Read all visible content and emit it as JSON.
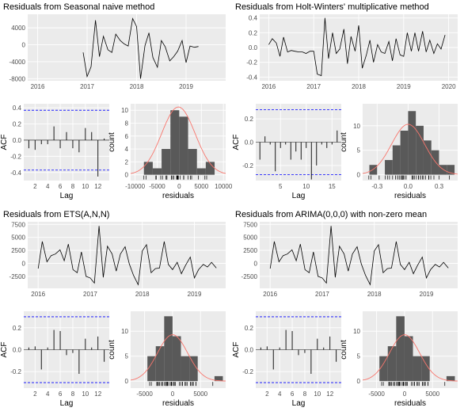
{
  "colors": {
    "panel_bg": "#ebebeb",
    "grid_major": "#ffffff",
    "line": "#000000",
    "bar_fill": "#595959",
    "normal_curve": "#f8766d",
    "conf_limit": "#0000ff",
    "axis_text": "#4d4d4d"
  },
  "chart_data": [
    {
      "group": "top-left",
      "title": "Residuals from Seasonal naive method",
      "residual_series": {
        "type": "line",
        "x_ticks": [
          "2016",
          "2017",
          "2018",
          "2019"
        ],
        "x_range": [
          2015.8,
          2019.8
        ],
        "y_ticks": [
          "4000",
          "0",
          "-4000",
          "-8000"
        ],
        "y_tick_values": [
          4000,
          0,
          -4000,
          -8000
        ],
        "y_range": [
          -8500,
          7200
        ],
        "x": [
          2016.92,
          2017.0,
          2017.08,
          2017.17,
          2017.25,
          2017.33,
          2017.42,
          2017.5,
          2017.58,
          2017.67,
          2017.75,
          2017.83,
          2017.92,
          2018.0,
          2018.08,
          2018.17,
          2018.25,
          2018.33,
          2018.42,
          2018.5,
          2018.58,
          2018.67,
          2018.75,
          2018.83,
          2018.92,
          2019.0,
          2019.08,
          2019.17,
          2019.25
        ],
        "y": [
          -1800,
          -7500,
          -5200,
          5800,
          -2800,
          2000,
          -1200,
          -1800,
          2500,
          1000,
          200,
          -300,
          6200,
          4300,
          -8000,
          -200,
          2800,
          -3000,
          -5300,
          1000,
          -500,
          -3800,
          -2800,
          -1500,
          1000,
          -4200,
          -300,
          -600,
          -400
        ]
      },
      "acf": {
        "type": "bar",
        "xlabel": "Lag",
        "ylabel": "ACF",
        "x_ticks": [
          "2",
          "4",
          "6",
          "8",
          "10",
          "12"
        ],
        "x_range": [
          0.2,
          13.8
        ],
        "y_ticks": [
          "0.4",
          "0.2",
          "0.0",
          "-0.2",
          "-0.4"
        ],
        "y_tick_values": [
          0.4,
          0.2,
          0.0,
          -0.2,
          -0.4
        ],
        "y_range": [
          -0.5,
          0.45
        ],
        "conf_limit": 0.37,
        "lags": [
          1,
          2,
          3,
          4,
          5,
          6,
          7,
          8,
          9,
          10,
          11,
          12,
          13
        ],
        "values": [
          -0.1,
          -0.12,
          -0.05,
          -0.05,
          0.17,
          -0.1,
          0.1,
          -0.1,
          -0.15,
          0.15,
          0.1,
          -0.45,
          0.02
        ]
      },
      "histogram": {
        "type": "bar",
        "xlabel": "residuals",
        "ylabel": "count",
        "x_ticks": [
          "-10000",
          "-5000",
          "0",
          "5000",
          "10000"
        ],
        "x_range": [
          -11000,
          10500
        ],
        "y_ticks": [
          "0",
          "2",
          "4",
          "6",
          "8",
          "10"
        ],
        "y_tick_values": [
          0,
          2,
          4,
          6,
          8,
          10
        ],
        "y_range": [
          -0.9,
          11
        ],
        "bin_width": 2000,
        "bin_starts": [
          -8000,
          -6000,
          -4000,
          -2000,
          0,
          2000,
          4000,
          6000
        ],
        "counts": [
          2,
          1,
          4,
          10,
          9,
          4,
          1,
          2
        ],
        "normal_mean": -200,
        "normal_sd": 3800,
        "normal_peak": 10.5
      }
    },
    {
      "group": "top-right",
      "title": "Residuals from Holt-Winters' multiplicative method",
      "residual_series": {
        "type": "line",
        "x_ticks": [
          "2016",
          "2017",
          "2018",
          "2019",
          "2020"
        ],
        "x_range": [
          2015.8,
          2020.2
        ],
        "y_ticks": [
          "0.4",
          "0.2",
          "0.0",
          "-0.2",
          "-0.4"
        ],
        "y_tick_values": [
          0.4,
          0.2,
          0.0,
          -0.2,
          -0.4
        ],
        "y_range": [
          -0.45,
          0.45
        ],
        "x": [
          2016.0,
          2016.08,
          2016.17,
          2016.25,
          2016.33,
          2016.42,
          2016.5,
          2016.58,
          2016.67,
          2016.75,
          2016.83,
          2016.92,
          2017.0,
          2017.08,
          2017.17,
          2017.25,
          2017.33,
          2017.42,
          2017.5,
          2017.58,
          2017.67,
          2017.75,
          2017.83,
          2017.92,
          2018.0,
          2018.08,
          2018.17,
          2018.25,
          2018.33,
          2018.42,
          2018.5,
          2018.58,
          2018.67,
          2018.75,
          2018.83,
          2018.92,
          2019.0,
          2019.08,
          2019.17,
          2019.25,
          2019.33,
          2019.42,
          2019.5,
          2019.58,
          2019.67,
          2019.75,
          2019.83,
          2019.92
        ],
        "y": [
          0.04,
          0.12,
          0.06,
          -0.12,
          0.14,
          -0.06,
          -0.04,
          -0.05,
          -0.06,
          -0.06,
          -0.08,
          -0.05,
          -0.05,
          -0.36,
          -0.38,
          0.4,
          -0.15,
          0.2,
          -0.08,
          -0.02,
          0.25,
          -0.22,
          0.15,
          -0.05,
          0.3,
          -0.28,
          -0.1,
          0.1,
          -0.2,
          0.04,
          -0.06,
          -0.08,
          0.08,
          -0.18,
          0.12,
          -0.1,
          -0.12,
          0.2,
          -0.05,
          0.2,
          -0.05,
          0.22,
          -0.06,
          0.1,
          -0.08,
          0.05,
          -0.02,
          0.17
        ]
      },
      "acf": {
        "type": "bar",
        "xlabel": "Lag",
        "ylabel": "ACF",
        "x_ticks": [
          "5",
          "10",
          "15"
        ],
        "x_range": [
          0.2,
          16.8
        ],
        "y_ticks": [
          "0.2",
          "0.0",
          "-0.2"
        ],
        "y_tick_values": [
          0.2,
          0.0,
          -0.2
        ],
        "y_range": [
          -0.33,
          0.33
        ],
        "conf_limit": 0.28,
        "lags": [
          1,
          2,
          3,
          4,
          5,
          6,
          7,
          8,
          9,
          10,
          11,
          12,
          13,
          14,
          15,
          16
        ],
        "values": [
          -0.15,
          0.05,
          -0.02,
          -0.25,
          -0.05,
          -0.02,
          -0.15,
          -0.08,
          -0.15,
          -0.05,
          -0.32,
          -0.2,
          -0.02,
          -0.05,
          -0.02,
          0.1
        ]
      },
      "histogram": {
        "type": "bar",
        "xlabel": "residuals",
        "ylabel": "count",
        "x_ticks": [
          "-0.3",
          "0.0",
          "0.3"
        ],
        "x_range": [
          -0.44,
          0.48
        ],
        "y_ticks": [
          "0",
          "5",
          "10"
        ],
        "y_tick_values": [
          0,
          5,
          10
        ],
        "y_range": [
          -1.2,
          14.5
        ],
        "bin_width": 0.075,
        "bin_starts": [
          -0.375,
          -0.3,
          -0.225,
          -0.15,
          -0.075,
          0.0,
          0.075,
          0.15,
          0.225,
          0.3,
          0.375
        ],
        "counts": [
          2,
          0,
          3,
          6,
          9,
          13,
          10,
          7,
          5,
          2,
          2
        ],
        "normal_mean": 0.0,
        "normal_sd": 0.16,
        "normal_peak": 10.3
      }
    },
    {
      "group": "bottom-left",
      "title": "Residuals from ETS(A,N,N)",
      "residual_series": {
        "type": "line",
        "x_ticks": [
          "2016",
          "2017",
          "2018",
          "2019"
        ],
        "x_range": [
          2015.8,
          2019.6
        ],
        "y_ticks": [
          "7500",
          "5000",
          "2500",
          "0",
          "-2500"
        ],
        "y_tick_values": [
          7500,
          5000,
          2500,
          0,
          -2500
        ],
        "y_range": [
          -4800,
          8000
        ],
        "x": [
          2016.0,
          2016.08,
          2016.17,
          2016.25,
          2016.33,
          2016.42,
          2016.5,
          2016.58,
          2016.67,
          2016.75,
          2016.83,
          2016.92,
          2017.0,
          2017.08,
          2017.17,
          2017.25,
          2017.33,
          2017.42,
          2017.5,
          2017.58,
          2017.67,
          2017.75,
          2017.83,
          2017.92,
          2018.0,
          2018.08,
          2018.17,
          2018.25,
          2018.33,
          2018.42,
          2018.5,
          2018.58,
          2018.67,
          2018.75,
          2018.83,
          2018.92,
          2019.0,
          2019.08,
          2019.17,
          2019.25,
          2019.33,
          2019.42
        ],
        "y": [
          -1000,
          4200,
          300,
          1500,
          1800,
          2600,
          500,
          3700,
          -1200,
          -1800,
          2200,
          -2500,
          -2800,
          -3800,
          7200,
          -2700,
          3300,
          1800,
          -1500,
          1800,
          3200,
          -100,
          -2300,
          -4100,
          2400,
          3600,
          -1800,
          -1000,
          -900,
          4200,
          -200,
          -1200,
          200,
          -2000,
          -400,
          1200,
          -2800,
          -1200,
          -200,
          -700,
          200,
          -900
        ]
      },
      "acf": {
        "type": "bar",
        "xlabel": "Lag",
        "ylabel": "ACF",
        "x_ticks": [
          "2",
          "4",
          "6",
          "8",
          "10",
          "12"
        ],
        "x_range": [
          0.2,
          13.8
        ],
        "y_ticks": [
          "0.2",
          "0.0",
          "-0.2"
        ],
        "y_tick_values": [
          0.2,
          0.0,
          -0.2
        ],
        "y_range": [
          -0.35,
          0.35
        ],
        "conf_limit": 0.3,
        "lags": [
          1,
          2,
          3,
          4,
          5,
          6,
          7,
          8,
          9,
          10,
          11,
          12,
          13
        ],
        "values": [
          0.02,
          0.03,
          -0.18,
          0.02,
          0.18,
          0.17,
          -0.05,
          -0.03,
          -0.22,
          0.1,
          0.02,
          0.12,
          -0.11
        ]
      },
      "histogram": {
        "type": "bar",
        "xlabel": "residuals",
        "ylabel": "count",
        "x_ticks": [
          "-5000",
          "0",
          "5000"
        ],
        "x_range": [
          -7500,
          9500
        ],
        "y_ticks": [
          "0",
          "5",
          "10"
        ],
        "y_tick_values": [
          0,
          5,
          10
        ],
        "y_range": [
          -1.4,
          14
        ],
        "bin_width": 1500,
        "bin_starts": [
          -4500,
          -3000,
          -1500,
          0,
          1500,
          3000,
          4500,
          6000,
          7500
        ],
        "counts": [
          5,
          7,
          13,
          9,
          5,
          5,
          0,
          0,
          1
        ],
        "normal_mean": 0,
        "normal_sd": 2700,
        "normal_peak": 9.3
      }
    },
    {
      "group": "bottom-right",
      "title": "Residuals from ARIMA(0,0,0) with non-zero mean",
      "residual_series": {
        "type": "line",
        "x_ticks": [
          "2016",
          "2017",
          "2018",
          "2019"
        ],
        "x_range": [
          2015.8,
          2019.6
        ],
        "y_ticks": [
          "7500",
          "5000",
          "2500",
          "0",
          "-2500"
        ],
        "y_tick_values": [
          7500,
          5000,
          2500,
          0,
          -2500
        ],
        "y_range": [
          -4800,
          8000
        ],
        "x": [
          2016.0,
          2016.08,
          2016.17,
          2016.25,
          2016.33,
          2016.42,
          2016.5,
          2016.58,
          2016.67,
          2016.75,
          2016.83,
          2016.92,
          2017.0,
          2017.08,
          2017.17,
          2017.25,
          2017.33,
          2017.42,
          2017.5,
          2017.58,
          2017.67,
          2017.75,
          2017.83,
          2017.92,
          2018.0,
          2018.08,
          2018.17,
          2018.25,
          2018.33,
          2018.42,
          2018.5,
          2018.58,
          2018.67,
          2018.75,
          2018.83,
          2018.92,
          2019.0,
          2019.08,
          2019.17,
          2019.25,
          2019.33,
          2019.42
        ],
        "y": [
          -1000,
          4200,
          300,
          1500,
          1800,
          2600,
          500,
          3700,
          -1200,
          -1800,
          2200,
          -2500,
          -2800,
          -3800,
          7200,
          -2700,
          3300,
          1800,
          -1500,
          1800,
          3200,
          -100,
          -2300,
          -4100,
          2400,
          3600,
          -1800,
          -1000,
          -900,
          4200,
          -200,
          -1200,
          200,
          -2000,
          -400,
          1200,
          -2800,
          -1200,
          -200,
          -700,
          200,
          -900
        ]
      },
      "acf": {
        "type": "bar",
        "xlabel": "Lag",
        "ylabel": "ACF",
        "x_ticks": [
          "2",
          "4",
          "6",
          "8",
          "10",
          "12"
        ],
        "x_range": [
          0.2,
          13.8
        ],
        "y_ticks": [
          "0.2",
          "0.0",
          "-0.2"
        ],
        "y_tick_values": [
          0.2,
          0.0,
          -0.2
        ],
        "y_range": [
          -0.35,
          0.35
        ],
        "conf_limit": 0.3,
        "lags": [
          1,
          2,
          3,
          4,
          5,
          6,
          7,
          8,
          9,
          10,
          11,
          12,
          13
        ],
        "values": [
          0.02,
          0.03,
          -0.18,
          0.02,
          0.18,
          0.17,
          -0.05,
          -0.03,
          -0.22,
          0.1,
          0.02,
          0.12,
          -0.11
        ]
      },
      "histogram": {
        "type": "bar",
        "xlabel": "residuals",
        "ylabel": "count",
        "x_ticks": [
          "-5000",
          "0",
          "5000"
        ],
        "x_range": [
          -7500,
          9500
        ],
        "y_ticks": [
          "0",
          "5",
          "10"
        ],
        "y_tick_values": [
          0,
          5,
          10
        ],
        "y_range": [
          -1.4,
          14
        ],
        "bin_width": 1500,
        "bin_starts": [
          -4500,
          -3000,
          -1500,
          0,
          1500,
          3000,
          4500,
          6000,
          7500
        ],
        "counts": [
          5,
          7,
          13,
          9,
          5,
          5,
          0,
          0,
          1
        ],
        "normal_mean": 0,
        "normal_sd": 2700,
        "normal_peak": 9.3
      }
    }
  ]
}
